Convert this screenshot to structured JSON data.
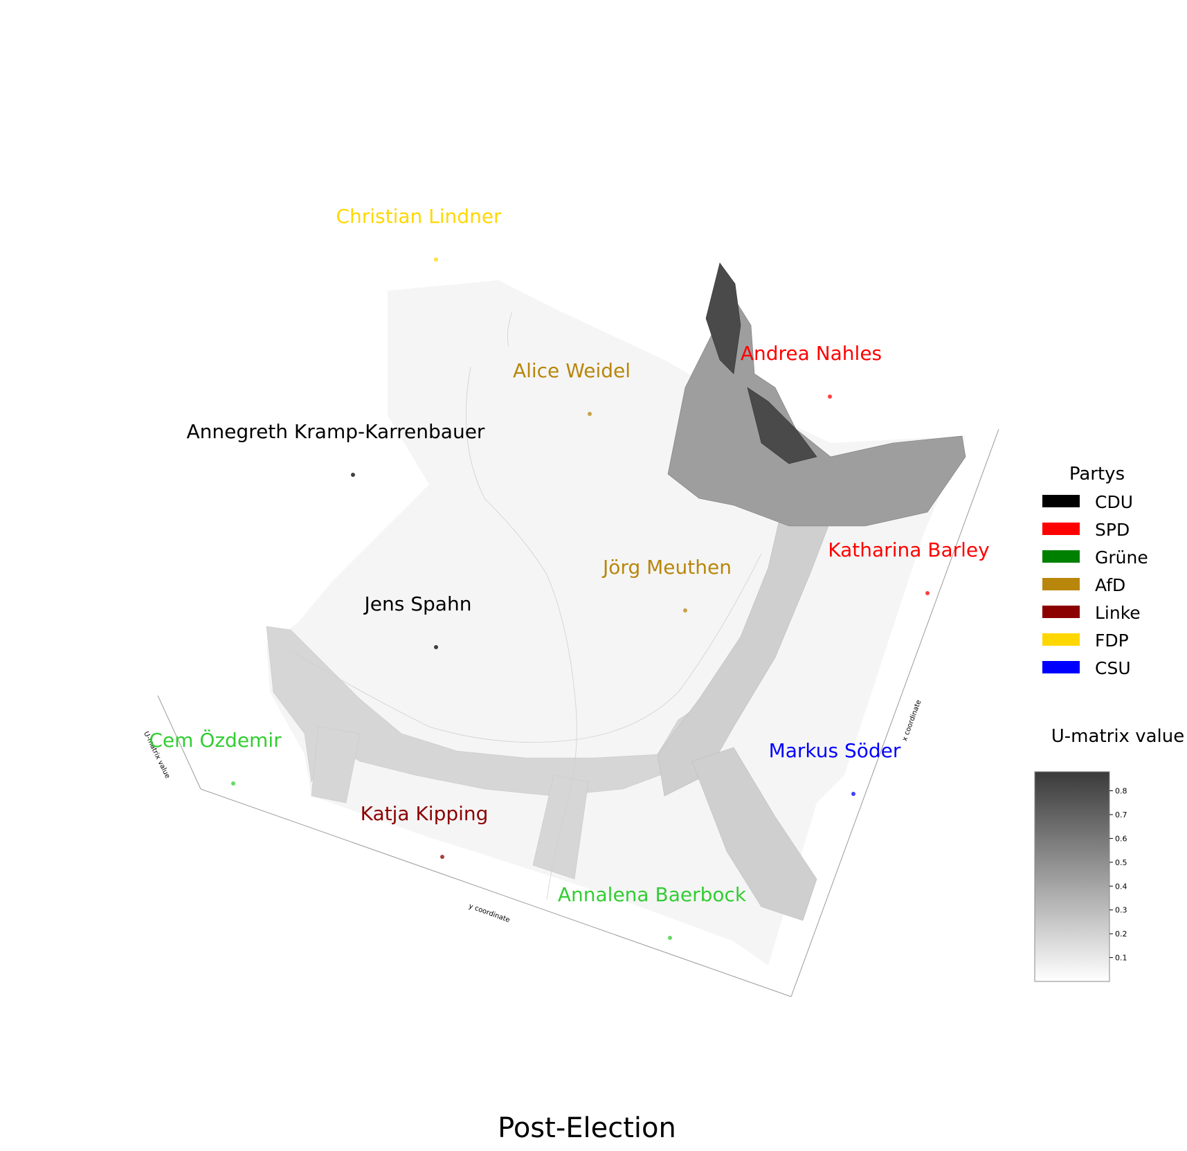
{
  "chart_data": {
    "type": "surface",
    "title": "Post-Election",
    "xlabel": "x coordinate",
    "ylabel": "y coordinate",
    "zlabel": "U-matrix value",
    "colorbar": {
      "title": "U-matrix value",
      "range": [
        0,
        0.88
      ],
      "ticks": [
        "0.1",
        "0.2",
        "0.3",
        "0.4",
        "0.5",
        "0.6",
        "0.7",
        "0.8"
      ]
    },
    "legend": {
      "title": "Partys",
      "placement": "right",
      "entries": [
        {
          "label": "CDU",
          "color": "#000000"
        },
        {
          "label": "SPD",
          "color": "#ff0000"
        },
        {
          "label": "Grüne",
          "color": "#008000"
        },
        {
          "label": "AfD",
          "color": "#b8860b"
        },
        {
          "label": "Linke",
          "color": "#8b0000"
        },
        {
          "label": "FDP",
          "color": "#ffd700"
        },
        {
          "label": "CSU",
          "color": "#0000ff"
        }
      ]
    },
    "points": [
      {
        "name": "Christian Lindner",
        "party": "FDP",
        "color": "#ffd700"
      },
      {
        "name": "Alice Weidel",
        "party": "AfD",
        "color": "#b8860b"
      },
      {
        "name": "Andrea Nahles",
        "party": "SPD",
        "color": "#ff0000"
      },
      {
        "name": "Annegreth Kramp-Karrenbauer",
        "party": "CDU",
        "color": "#000000"
      },
      {
        "name": "Jörg Meuthen",
        "party": "AfD",
        "color": "#b8860b"
      },
      {
        "name": "Katharina Barley",
        "party": "SPD",
        "color": "#ff0000"
      },
      {
        "name": "Jens Spahn",
        "party": "CDU",
        "color": "#000000"
      },
      {
        "name": "Cem Özdemir",
        "party": "Grüne",
        "color": "#32cd32"
      },
      {
        "name": "Markus Söder",
        "party": "CSU",
        "color": "#0000ff"
      },
      {
        "name": "Katja Kipping",
        "party": "Linke",
        "color": "#8b0000"
      },
      {
        "name": "Annalena Baerbock",
        "party": "Grüne",
        "color": "#32cd32"
      }
    ]
  }
}
